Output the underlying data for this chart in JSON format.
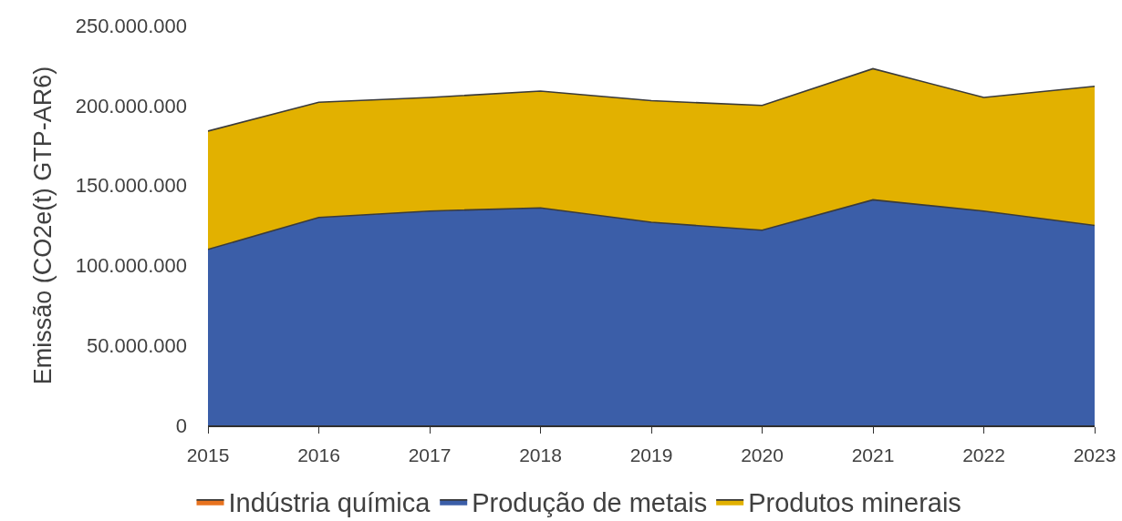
{
  "chart_data": {
    "type": "area",
    "stacked": true,
    "ylabel": "Emissão (CO2e(t) GTP-AR6)",
    "x": [
      2015,
      2016,
      2017,
      2018,
      2019,
      2020,
      2021,
      2022,
      2023
    ],
    "series": [
      {
        "name": "Indústria química",
        "color": "#e8731f",
        "values": [
          null,
          null,
          null,
          null,
          null,
          null,
          null,
          null,
          null
        ]
      },
      {
        "name": "Produção de metais",
        "color": "#3b5ea8",
        "values": [
          110000000,
          130000000,
          134000000,
          136000000,
          127000000,
          122000000,
          141000000,
          134000000,
          125000000
        ]
      },
      {
        "name": "Produtos minerais",
        "color": "#e2b100",
        "values": [
          74000000,
          72000000,
          71000000,
          73000000,
          76000000,
          78000000,
          82000000,
          71000000,
          87000000
        ]
      }
    ],
    "xlim": [
      2015,
      2023
    ],
    "xticks": [
      2015,
      2016,
      2017,
      2018,
      2019,
      2020,
      2021,
      2022,
      2023
    ],
    "ylim": [
      0,
      250000000
    ],
    "yticks": [
      0,
      {
        "value": 50000000,
        "label": "50.000.000"
      },
      {
        "value": 100000000,
        "label": "100.000.000"
      },
      {
        "value": 150000000,
        "label": "150.000.000"
      },
      {
        "value": 200000000,
        "label": "200.000.000"
      },
      {
        "value": 250000000,
        "label": "250.000.000"
      }
    ],
    "grid": false,
    "legend": "bottom",
    "marker": "none",
    "line_style": "solid"
  }
}
